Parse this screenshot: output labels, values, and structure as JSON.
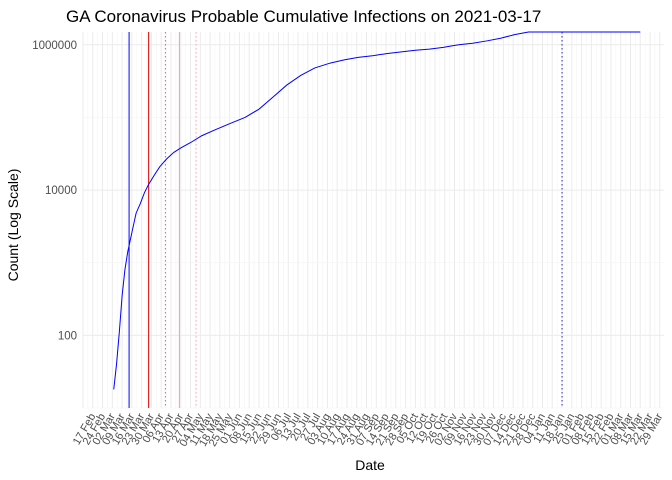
{
  "chart_data": {
    "type": "line",
    "title": "GA Coronavirus Probable Cumulative Infections on 2021-03-17",
    "xlabel": "Date",
    "ylabel": "Count (Log Scale)",
    "y_scale": "log10",
    "ylim": [
      10,
      1500000
    ],
    "y_ticks": [
      {
        "value": 100,
        "label": "100"
      },
      {
        "value": 10000,
        "label": "10000"
      },
      {
        "value": 1000000,
        "label": "1000000"
      }
    ],
    "x_range": [
      "2020-02-10",
      "2021-04-01"
    ],
    "x_tick_dates": [
      "2020-02-17",
      "2020-02-24",
      "2020-03-02",
      "2020-03-09",
      "2020-03-16",
      "2020-03-23",
      "2020-03-30",
      "2020-04-06",
      "2020-04-13",
      "2020-04-20",
      "2020-04-27",
      "2020-05-04",
      "2020-05-11",
      "2020-05-18",
      "2020-05-25",
      "2020-06-01",
      "2020-06-08",
      "2020-06-15",
      "2020-06-22",
      "2020-06-29",
      "2020-07-06",
      "2020-07-13",
      "2020-07-20",
      "2020-07-27",
      "2020-08-03",
      "2020-08-10",
      "2020-08-17",
      "2020-08-24",
      "2020-08-31",
      "2020-09-07",
      "2020-09-14",
      "2020-09-21",
      "2020-09-28",
      "2020-10-05",
      "2020-10-12",
      "2020-10-19",
      "2020-10-26",
      "2020-11-02",
      "2020-11-09",
      "2020-11-16",
      "2020-11-23",
      "2020-11-30",
      "2020-12-07",
      "2020-12-14",
      "2020-12-21",
      "2020-12-28",
      "2021-01-04",
      "2021-01-11",
      "2021-01-18",
      "2021-01-25",
      "2021-02-01",
      "2021-02-08",
      "2021-02-15",
      "2021-02-22",
      "2021-03-01",
      "2021-03-08",
      "2021-03-15",
      "2021-03-22",
      "2021-03-29"
    ],
    "x_tick_labels": [
      "17 Feb",
      "24 Feb",
      "02 Mar",
      "09 Mar",
      "16 Mar",
      "23 Mar",
      "30 Mar",
      "06 Apr",
      "13 Apr",
      "20 Apr",
      "27 Apr",
      "04 May",
      "11 May",
      "18 May",
      "25 May",
      "01 Jun",
      "08 Jun",
      "15 Jun",
      "22 Jun",
      "29 Jun",
      "06 Jul",
      "13 Jul",
      "20 Jul",
      "27 Jul",
      "03 Aug",
      "10 Aug",
      "17 Aug",
      "24 Aug",
      "31 Aug",
      "07 Sep",
      "14 Sep",
      "21 Sep",
      "28 Sep",
      "05 Oct",
      "12 Oct",
      "19 Oct",
      "26 Oct",
      "02 Nov",
      "09 Nov",
      "16 Nov",
      "23 Nov",
      "30 Nov",
      "07 Dec",
      "14 Dec",
      "21 Dec",
      "28 Dec",
      "04 Jan",
      "11 Jan",
      "18 Jan",
      "25 Jan",
      "01 Feb",
      "08 Feb",
      "15 Feb",
      "22 Feb",
      "01 Mar",
      "08 Mar",
      "15 Mar",
      "22 Mar",
      "29 Mar"
    ],
    "series": [
      {
        "color": "#0000ff",
        "x": [
          "2020-03-03",
          "2020-03-05",
          "2020-03-07",
          "2020-03-09",
          "2020-03-11",
          "2020-03-13",
          "2020-03-16",
          "2020-03-19",
          "2020-03-22",
          "2020-03-25",
          "2020-03-28",
          "2020-04-01",
          "2020-04-05",
          "2020-04-10",
          "2020-04-15",
          "2020-04-20",
          "2020-04-27",
          "2020-05-05",
          "2020-05-15",
          "2020-05-25",
          "2020-06-05",
          "2020-06-15",
          "2020-06-25",
          "2020-07-05",
          "2020-07-15",
          "2020-07-25",
          "2020-08-05",
          "2020-08-15",
          "2020-08-25",
          "2020-09-05",
          "2020-09-15",
          "2020-09-25",
          "2020-10-05",
          "2020-10-15",
          "2020-10-25",
          "2020-10-29",
          "2020-11-05",
          "2020-11-15",
          "2020-11-25",
          "2020-12-05",
          "2020-12-15",
          "2020-12-25",
          "2021-01-05",
          "2021-01-15",
          "2021-01-25",
          "2021-02-05",
          "2021-02-15",
          "2021-02-25",
          "2021-03-05",
          "2021-03-15"
        ],
        "values": [
          18,
          40,
          110,
          350,
          800,
          1400,
          2600,
          4800,
          6500,
          9200,
          12000,
          16000,
          21000,
          27000,
          33000,
          38000,
          45000,
          56000,
          68000,
          82000,
          100000,
          130000,
          190000,
          280000,
          380000,
          480000,
          560000,
          620000,
          670000,
          710000,
          760000,
          800000,
          840000,
          870000,
          920000,
          950000,
          1000000,
          1050000,
          1130000,
          1230000,
          1380000,
          1550000,
          1750000,
          2050000,
          2300000,
          2450000,
          2550000,
          2600000,
          2650000,
          2700000
        ]
      }
    ],
    "vlines": [
      {
        "date": "2020-03-14",
        "color": "#0000ff",
        "style": "solid"
      },
      {
        "date": "2020-03-28",
        "color": "#e00000",
        "style": "solid"
      },
      {
        "date": "2020-04-09",
        "color": "#e06060",
        "style": "dotted"
      },
      {
        "date": "2020-04-19",
        "color": "#f0a0a0",
        "style": "solid"
      },
      {
        "date": "2020-05-01",
        "color": "#f0b0b0",
        "style": "dotted"
      },
      {
        "date": "2021-01-18",
        "color": "#2020c0",
        "style": "dotted"
      }
    ],
    "grid": true,
    "legend": "none"
  }
}
